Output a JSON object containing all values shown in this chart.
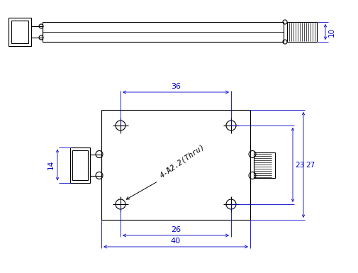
{
  "bg_color": "#ffffff",
  "draw_color": "#000000",
  "dim_color": "#0000cc",
  "figsize": [
    5.06,
    3.85
  ],
  "dpi": 100,
  "annotation_text": "4-Ά2.2(Thru)"
}
